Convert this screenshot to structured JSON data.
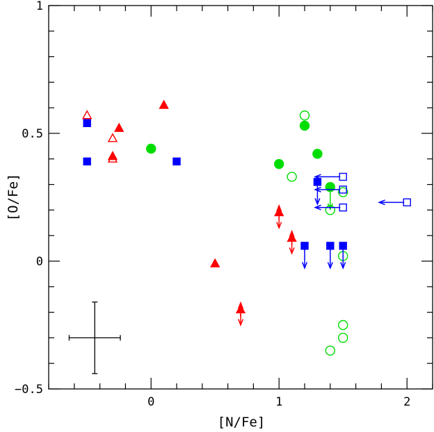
{
  "chart_data": {
    "type": "scatter",
    "title": "",
    "xlabel": "[N/Fe]",
    "ylabel": "[O/Fe]",
    "xlim": [
      -0.8,
      2.2
    ],
    "ylim": [
      -0.5,
      1.0
    ],
    "xticks": [
      {
        "value": 0,
        "label": "0"
      },
      {
        "value": 1,
        "label": "1"
      },
      {
        "value": 2,
        "label": "2"
      }
    ],
    "yticks": [
      {
        "value": -0.5,
        "label": "−0.5"
      },
      {
        "value": 0,
        "label": "0"
      },
      {
        "value": 0.5,
        "label": "0.5"
      },
      {
        "value": 1,
        "label": "1"
      }
    ],
    "x_minor_step": 0.2,
    "y_minor_step": 0.1,
    "grid": false,
    "colors": {
      "red": "#ff0000",
      "green": "#00dd00",
      "blue": "#0000ff",
      "axis": "#000000"
    },
    "series": [
      {
        "marker": "filled-triangle",
        "color": "red",
        "points": [
          [
            -0.3,
            0.41
          ],
          [
            -0.25,
            0.52
          ],
          [
            0.1,
            0.61
          ],
          [
            0.5,
            -0.01
          ]
        ]
      },
      {
        "marker": "open-triangle",
        "color": "red",
        "points": [
          [
            -0.5,
            0.57
          ],
          [
            -0.3,
            0.48
          ],
          [
            -0.3,
            0.4
          ]
        ]
      },
      {
        "marker": "filled-triangle",
        "color": "red",
        "limit": "both",
        "points": [
          [
            1.0,
            0.19
          ],
          [
            1.1,
            0.09
          ],
          [
            0.7,
            -0.19
          ]
        ]
      },
      {
        "marker": "filled-circle",
        "color": "green",
        "points": [
          [
            0.0,
            0.44
          ],
          [
            1.2,
            0.53
          ],
          [
            1.3,
            0.42
          ],
          [
            1.0,
            0.38
          ]
        ]
      },
      {
        "marker": "filled-circle",
        "color": "green",
        "limit": "upper",
        "points": [
          [
            1.4,
            0.29
          ]
        ]
      },
      {
        "marker": "open-circle",
        "color": "green",
        "points": [
          [
            1.2,
            0.57
          ],
          [
            1.1,
            0.33
          ],
          [
            1.5,
            0.27
          ],
          [
            1.4,
            0.2
          ],
          [
            1.5,
            0.02
          ],
          [
            1.5,
            -0.25
          ],
          [
            1.5,
            -0.3
          ],
          [
            1.4,
            -0.35
          ]
        ]
      },
      {
        "marker": "filled-square",
        "color": "blue",
        "points": [
          [
            -0.5,
            0.54
          ],
          [
            -0.5,
            0.39
          ],
          [
            0.2,
            0.39
          ]
        ]
      },
      {
        "marker": "filled-square",
        "color": "blue",
        "limit": "upper",
        "points": [
          [
            1.2,
            0.06
          ],
          [
            1.4,
            0.06
          ],
          [
            1.5,
            0.06
          ],
          [
            1.3,
            0.31
          ]
        ]
      },
      {
        "marker": "open-square",
        "color": "blue",
        "limit": "xupper",
        "points": [
          [
            1.5,
            0.33
          ],
          [
            1.5,
            0.28
          ],
          [
            1.5,
            0.21
          ],
          [
            2.0,
            0.23
          ]
        ]
      }
    ],
    "error_bar": {
      "x": -0.44,
      "y": -0.3,
      "xerr": 0.2,
      "yerr": 0.14
    }
  }
}
